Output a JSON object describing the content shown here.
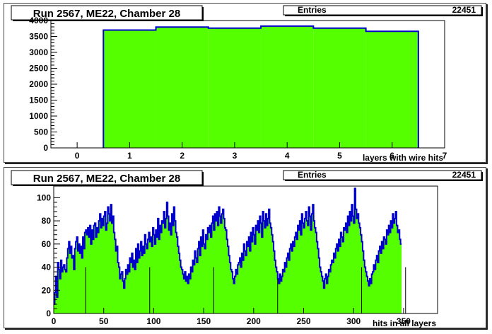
{
  "colors": {
    "fill": "#55ff00",
    "line": "#0000cc",
    "frame": "#000000",
    "marker": "#000000"
  },
  "chart_data": [
    {
      "type": "bar",
      "title": "Run 2567, ME22, Chamber 28",
      "stats": {
        "label": "Entries",
        "value": "22451"
      },
      "xlabel": "layers with wire hits",
      "ylabel": "",
      "categories": [
        "1",
        "2",
        "3",
        "4",
        "5",
        "6"
      ],
      "values": [
        3700,
        3795,
        3760,
        3825,
        3760,
        3660
      ],
      "xlim": [
        -0.5,
        7.0
      ],
      "ylim": [
        0,
        4000
      ],
      "xticks": [
        "0",
        "1",
        "2",
        "3",
        "4",
        "5",
        "6",
        "7"
      ],
      "yticks": [
        "0",
        "500",
        "1000",
        "1500",
        "2000",
        "2500",
        "3000",
        "3500",
        "4000"
      ],
      "grid": false,
      "legend": "none"
    },
    {
      "type": "bar",
      "title": "Run 2567, ME22, Chamber 28",
      "stats": {
        "label": "Entries",
        "value": "22451"
      },
      "xlabel": "hits in all layers",
      "ylabel": "",
      "xlim": [
        0,
        384
      ],
      "ylim": [
        0,
        110
      ],
      "xticks": [
        "0",
        "50",
        "100",
        "150",
        "200",
        "250",
        "300",
        "350"
      ],
      "yticks": [
        "0",
        "20",
        "40",
        "60",
        "80",
        "100"
      ],
      "bin_width": 1,
      "markers": [
        32,
        96,
        160,
        224,
        308,
        352
      ],
      "values": [
        8,
        18,
        32,
        14,
        44,
        38,
        30,
        46,
        36,
        40,
        42,
        38,
        36,
        48,
        56,
        62,
        52,
        58,
        48,
        50,
        38,
        56,
        62,
        66,
        54,
        60,
        52,
        58,
        48,
        66,
        56,
        70,
        72,
        68,
        74,
        66,
        76,
        60,
        72,
        64,
        76,
        78,
        66,
        74,
        70,
        80,
        86,
        74,
        82,
        76,
        84,
        88,
        72,
        78,
        92,
        86,
        80,
        94,
        78,
        84,
        70,
        64,
        54,
        58,
        44,
        40,
        30,
        34,
        36,
        28,
        22,
        30,
        38,
        34,
        42,
        36,
        48,
        44,
        52,
        40,
        46,
        38,
        56,
        44,
        60,
        48,
        54,
        62,
        50,
        58,
        52,
        68,
        60,
        56,
        64,
        70,
        62,
        66,
        58,
        74,
        68,
        60,
        72,
        66,
        82,
        64,
        76,
        70,
        80,
        78,
        88,
        74,
        82,
        96,
        84,
        72,
        78,
        68,
        86,
        76,
        92,
        80,
        70,
        66,
        58,
        52,
        46,
        40,
        38,
        34,
        30,
        36,
        28,
        32,
        26,
        34,
        30,
        40,
        36,
        46,
        42,
        54,
        48,
        44,
        56,
        62,
        50,
        66,
        58,
        72,
        60,
        56,
        68,
        64,
        74,
        70,
        76,
        66,
        78,
        84,
        72,
        86,
        80,
        88,
        76,
        92,
        84,
        78,
        86,
        90,
        82,
        74,
        72,
        64,
        58,
        50,
        44,
        38,
        36,
        30,
        26,
        32,
        38,
        34,
        42,
        44,
        48,
        40,
        52,
        46,
        60,
        54,
        50,
        62,
        58,
        66,
        54,
        70,
        62,
        74,
        68,
        60,
        76,
        72,
        80,
        70,
        84,
        78,
        66,
        88,
        80,
        74,
        86,
        76,
        82,
        90,
        78,
        74,
        68,
        62,
        54,
        46,
        40,
        36,
        30,
        26,
        34,
        28,
        32,
        38,
        36,
        44,
        40,
        48,
        52,
        46,
        56,
        60,
        54,
        62,
        58,
        66,
        70,
        64,
        76,
        72,
        80,
        68,
        86,
        78,
        74,
        82,
        88,
        80,
        76,
        92,
        84,
        72,
        86,
        94,
        80,
        74,
        70,
        62,
        56,
        48,
        40,
        36,
        32,
        28,
        22,
        30,
        34,
        26,
        32,
        38,
        36,
        42,
        46,
        44,
        52,
        48,
        56,
        60,
        54,
        64,
        58,
        70,
        66,
        62,
        74,
        72,
        78,
        70,
        84,
        76,
        88,
        80,
        94,
        84,
        78,
        108,
        90,
        82,
        86,
        78,
        74,
        68,
        62,
        54,
        46,
        40,
        36,
        32,
        28,
        24,
        30,
        26,
        34,
        36,
        42,
        38,
        46,
        50,
        44,
        54,
        58,
        52,
        62,
        56,
        66,
        64,
        60,
        72,
        68,
        76,
        70,
        80,
        74,
        86,
        78,
        82,
        88,
        76,
        70,
        72,
        64,
        60
      ]
    }
  ]
}
